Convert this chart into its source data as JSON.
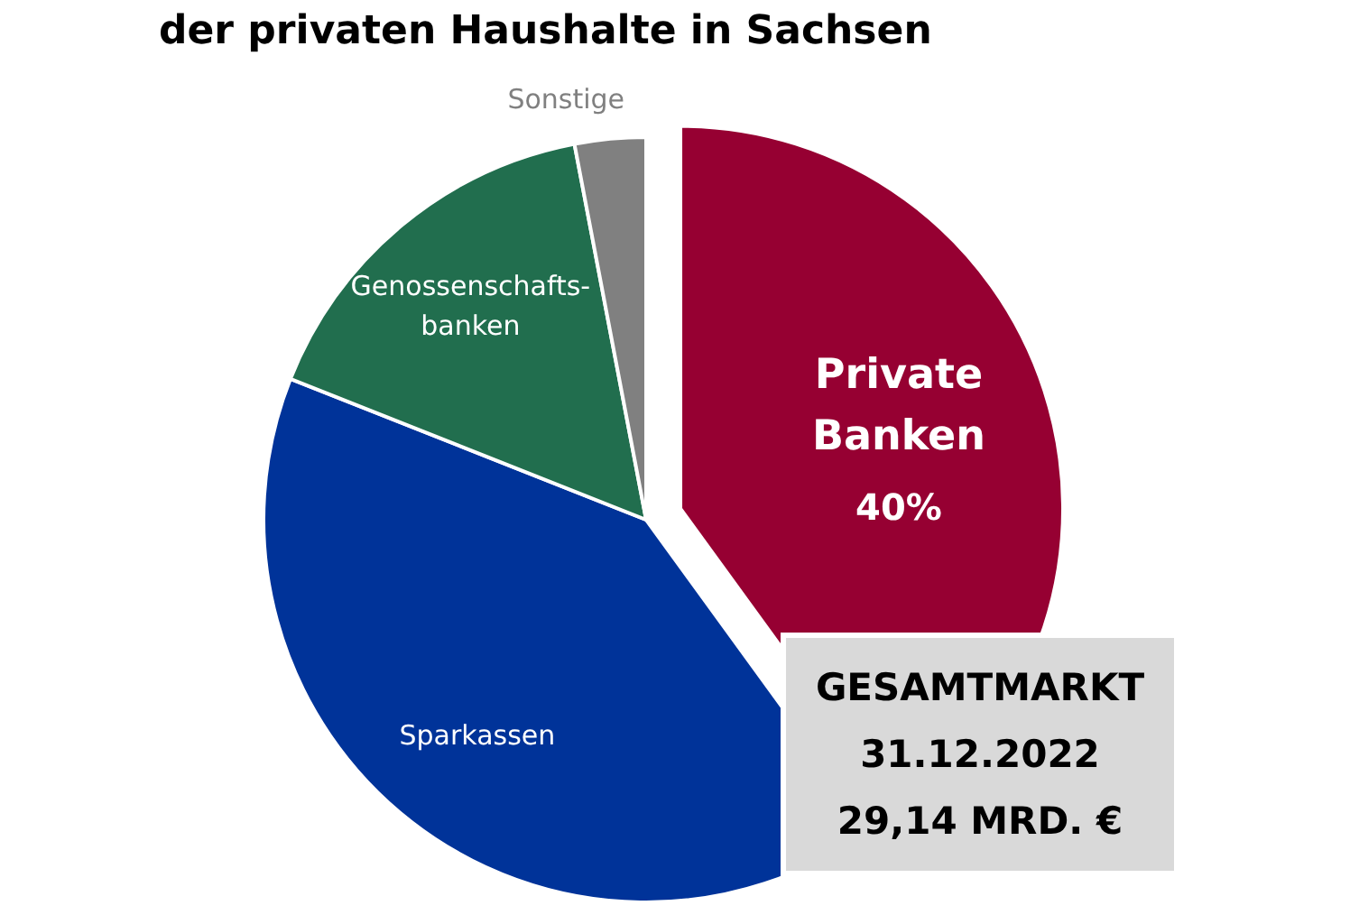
{
  "chart_data": {
    "type": "pie",
    "title": "der privaten Haushalte in Sachsen",
    "categories": [
      "Private\nBanken",
      "Sparkassen",
      "Genossenschafts-\nbanken",
      "Sonstige"
    ],
    "values": [
      40,
      41,
      16,
      3
    ],
    "colors": [
      "#960032",
      "#003399",
      "#216e4e",
      "#808080"
    ],
    "value_labels": [
      "40%",
      null,
      null,
      null
    ],
    "annotations": [
      "GESAMTMARKT",
      "31.12.2022",
      "29,14 MRD. €"
    ]
  }
}
